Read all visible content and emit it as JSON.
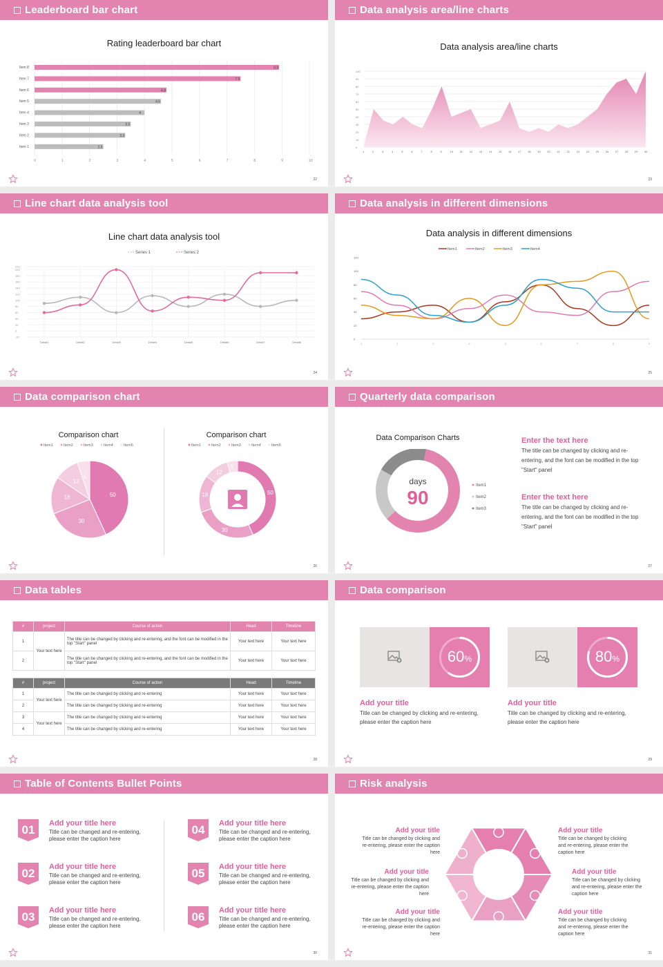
{
  "slides": [
    {
      "header": "Leaderboard bar chart",
      "num": "22"
    },
    {
      "header": "Data analysis area/line charts",
      "num": "23"
    },
    {
      "header": "Line chart data analysis tool",
      "num": "24"
    },
    {
      "header": "Data analysis in different dimensions",
      "num": "25"
    },
    {
      "header": "Data comparison chart",
      "num": "26"
    },
    {
      "header": "Quarterly data comparison",
      "num": "27"
    },
    {
      "header": "Data tables",
      "num": "28"
    },
    {
      "header": "Data comparison",
      "num": "29"
    },
    {
      "header": "Table of Contents Bullet Points",
      "num": "30"
    },
    {
      "header": "Risk analysis",
      "num": "31"
    }
  ],
  "chart_data": [
    {
      "type": "bar",
      "title": "Rating leaderboard bar chart",
      "categories": [
        "Item 8",
        "Item 7",
        "Item 6",
        "Item 5",
        "Item 4",
        "Item 3",
        "Item 2",
        "Item 1"
      ],
      "values": [
        8.9,
        7.5,
        4.8,
        4.6,
        4,
        3.5,
        3.3,
        2.5
      ],
      "xlim": [
        0,
        10
      ],
      "xticks": [
        "0",
        "1",
        "2",
        "3",
        "4",
        "5",
        "6",
        "7",
        "8",
        "9",
        "10"
      ]
    },
    {
      "type": "area",
      "title": "Data analysis area/line charts",
      "x": [
        "1",
        "2",
        "3",
        "4",
        "5",
        "6",
        "7",
        "8",
        "9",
        "10",
        "11",
        "12",
        "13",
        "14",
        "15",
        "16",
        "17",
        "18",
        "19",
        "20",
        "21",
        "22",
        "23",
        "24",
        "25",
        "26",
        "27",
        "28",
        "29",
        "30"
      ],
      "values": [
        3,
        50,
        35,
        30,
        40,
        30,
        25,
        50,
        80,
        40,
        45,
        50,
        25,
        30,
        35,
        60,
        25,
        20,
        25,
        20,
        30,
        25,
        30,
        40,
        50,
        70,
        85,
        90,
        70,
        100
      ],
      "ylim": [
        0,
        100
      ],
      "yticks": [
        "0",
        "10",
        "20",
        "30",
        "40",
        "50",
        "60",
        "70",
        "80",
        "90",
        "100"
      ]
    },
    {
      "type": "line",
      "title": "Line chart data analysis tool",
      "categories": [
        "Detail1",
        "Detail2",
        "Detail3",
        "Detail4",
        "Detail5",
        "Detail6",
        "Detail7",
        "Detail8"
      ],
      "series": [
        {
          "name": "Series 1",
          "values": [
            90,
            110,
            60,
            115,
            80,
            120,
            80,
            100
          ]
        },
        {
          "name": "Series 2",
          "values": [
            60,
            85,
            200,
            65,
            110,
            100,
            190,
            190
          ]
        }
      ],
      "ylim": [
        -20,
        210
      ],
      "yticks": [
        "210",
        "200",
        "180",
        "160",
        "140",
        "120",
        "100",
        "80",
        "60",
        "40",
        "20",
        "0",
        "-20"
      ]
    },
    {
      "type": "line",
      "title": "Data analysis in different dimensions",
      "x": [
        "1",
        "2",
        "3",
        "4",
        "5",
        "6",
        "7",
        "8",
        "9"
      ],
      "series": [
        {
          "name": "Item1",
          "values": [
            30,
            40,
            50,
            25,
            55,
            80,
            45,
            20,
            50
          ]
        },
        {
          "name": "Item2",
          "values": [
            70,
            50,
            30,
            45,
            65,
            40,
            35,
            70,
            85
          ]
        },
        {
          "name": "Item3",
          "values": [
            50,
            35,
            30,
            60,
            20,
            80,
            85,
            100,
            30
          ]
        },
        {
          "name": "Item4",
          "values": [
            88,
            65,
            35,
            25,
            50,
            88,
            75,
            40,
            40
          ]
        }
      ],
      "ylim": [
        0,
        120
      ],
      "yticks": [
        "0",
        "20",
        "40",
        "60",
        "80",
        "100",
        "120"
      ]
    },
    {
      "type": "pie",
      "title": "Comparison chart",
      "categories": [
        "Item1",
        "Item2",
        "Item3",
        "Item4",
        "Item5"
      ],
      "values": [
        50,
        30,
        18,
        12,
        6
      ]
    },
    {
      "type": "pie",
      "title": "Comparison chart",
      "categories": [
        "Item1",
        "Item2",
        "Item3",
        "Item4",
        "Item5"
      ],
      "values": [
        50,
        30,
        18,
        12,
        5
      ]
    },
    {
      "type": "pie",
      "title": "Data Comparison Charts",
      "categories": [
        "Item1",
        "Item2",
        "Item3"
      ],
      "values": [
        60,
        20,
        20
      ]
    }
  ],
  "s6": {
    "days_label": "days",
    "days_value": "90",
    "legend": [
      "Item1",
      "Item2",
      "Item3"
    ],
    "blocks": [
      {
        "title": "Enter the text here",
        "body": "The title can be changed by clicking and re-entering, and the font can be modified in the top \"Start\" panel"
      },
      {
        "title": "Enter the text here",
        "body": "The title can be changed by clicking and re-entering, and the font can be modified in the top \"Start\" panel"
      }
    ]
  },
  "s7": {
    "t1": {
      "cols": [
        "#",
        "project",
        "Course of action",
        "Head",
        "Timeline"
      ],
      "merged": "Your text here",
      "rows": [
        {
          "n": "1",
          "c": "The title can be changed by clicking and re-entering, and the font can be modified in the top \"Start\" panel",
          "h": "Your text here",
          "tl": "Your text here"
        },
        {
          "n": "2",
          "c": "The title can be changed by clicking and re-entering, and the font can be modified in the top \"Start\" panel",
          "h": "Your text here",
          "tl": "Your text here"
        }
      ]
    },
    "t2": {
      "cols": [
        "#",
        "project",
        "Course of action",
        "Head",
        "Timeline"
      ],
      "merged": "Your text here",
      "rows": [
        {
          "n": "1",
          "c": "The title can be changed by clicking and re-entering",
          "h": "Your text here",
          "tl": "Your text here"
        },
        {
          "n": "2",
          "c": "The title can be changed by clicking and re-entering",
          "h": "Your text here",
          "tl": "Your text here"
        },
        {
          "n": "3",
          "c": "The title can be changed by clicking and re-entering",
          "h": "Your text here",
          "tl": "Your text here"
        },
        {
          "n": "4",
          "c": "The title can be changed by clicking and re-entering",
          "h": "Your text here",
          "tl": "Your text here"
        }
      ]
    }
  },
  "s8": {
    "cards": [
      {
        "pct": "60",
        "unit": "%",
        "progress": 0.6,
        "title": "Add your title",
        "body": "Title can be changed by clicking and re-entering, please enter the caption here"
      },
      {
        "pct": "80",
        "unit": "%",
        "progress": 0.8,
        "title": "Add your title",
        "body": "Title can be changed by clicking and re-entering, please enter the caption here"
      }
    ]
  },
  "s9": {
    "items": [
      {
        "n": "01",
        "title": "Add your title here",
        "body": "Title can be changed and re-entering, please enter the caption here"
      },
      {
        "n": "02",
        "title": "Add your title here",
        "body": "Title can be changed and re-entering, please enter the caption here"
      },
      {
        "n": "03",
        "title": "Add your title here",
        "body": "Title can be changed and re-entering, please enter the caption here"
      },
      {
        "n": "04",
        "title": "Add your title here",
        "body": "Title can be changed and re-entering, please enter the caption here"
      },
      {
        "n": "05",
        "title": "Add your title here",
        "body": "Title can be changed and re-entering, please enter the caption here"
      },
      {
        "n": "06",
        "title": "Add your title here",
        "body": "Title can be changed and re-entering, please enter the caption here"
      }
    ]
  },
  "s10": {
    "items": [
      {
        "title": "Add your title",
        "body": "Title can be changed by clicking and re-entering, please enter the caption here"
      },
      {
        "title": "Add your title",
        "body": "Title can be changed by clicking and re-entering, please enter the caption here"
      },
      {
        "title": "Add your title",
        "body": "Title can be changed by clicking and re-entering, please enter the caption here"
      },
      {
        "title": "Add your title",
        "body": "Title can be changed by clicking and re-entering, please enter the caption here"
      },
      {
        "title": "Add your title",
        "body": "Title can be changed by clicking and re-entering, please enter the caption here"
      },
      {
        "title": "Add your title",
        "body": "Title can be changed by clicking and re-entering, please enter the caption here"
      }
    ],
    "icons": [
      "money-bag-icon",
      "coins-icon",
      "users-icon",
      "pie-chart-icon",
      "building-icon",
      "yen-person-icon"
    ]
  },
  "colors": {
    "pink": "#e383b0",
    "accent": "#e05f9b",
    "gray": "#bdbdbd",
    "item1": "#a8361e",
    "item2": "#e07ab0",
    "item3": "#e19a1c",
    "item4": "#2aa1c8"
  }
}
